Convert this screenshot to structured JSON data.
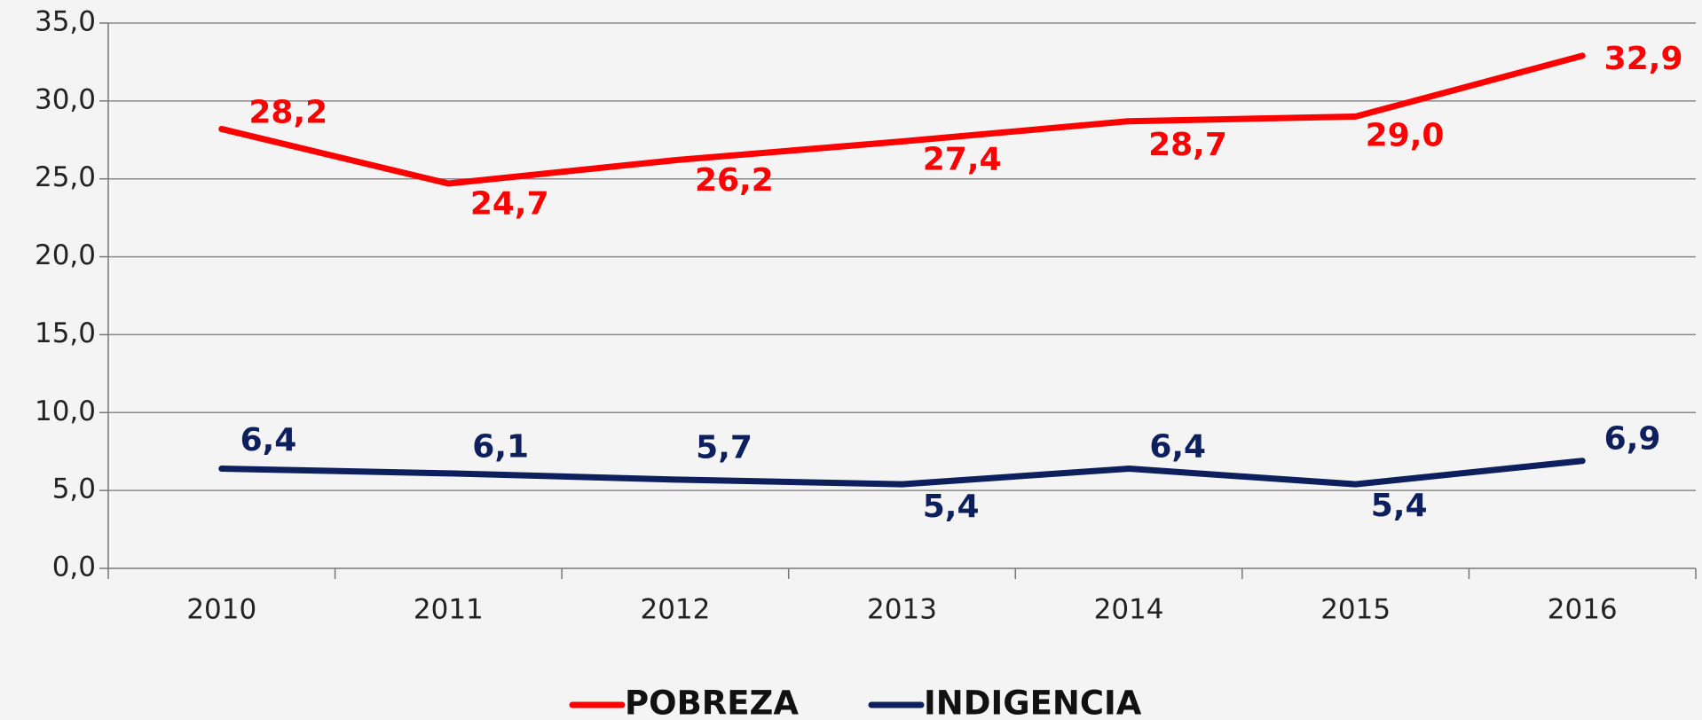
{
  "chart_data": {
    "type": "line",
    "categories": [
      "2010",
      "2011",
      "2012",
      "2013",
      "2014",
      "2015",
      "2016"
    ],
    "series": [
      {
        "name": "POBREZA",
        "color": "#ff0000",
        "values": [
          28.2,
          24.7,
          26.2,
          27.4,
          28.7,
          29.0,
          32.9
        ],
        "value_labels": [
          "28,2",
          "24,7",
          "26,2",
          "27,4",
          "28,7",
          "29,0",
          "32,9"
        ]
      },
      {
        "name": "INDIGENCIA",
        "color": "#0d1f5c",
        "values": [
          6.4,
          6.1,
          5.7,
          5.4,
          6.4,
          5.4,
          6.9
        ],
        "value_labels": [
          "6,4",
          "6,1",
          "5,7",
          "5,4",
          "6,4",
          "5,4",
          "6,9"
        ]
      }
    ],
    "ylim": [
      0,
      35
    ],
    "yticks": [
      {
        "value": 0,
        "label": "0,0"
      },
      {
        "value": 5,
        "label": "5,0"
      },
      {
        "value": 10,
        "label": "10,0"
      },
      {
        "value": 15,
        "label": "15,0"
      },
      {
        "value": 20,
        "label": "20,0"
      },
      {
        "value": 25,
        "label": "25,0"
      },
      {
        "value": 30,
        "label": "30,0"
      },
      {
        "value": 35,
        "label": "35,0"
      }
    ],
    "grid": true,
    "legend": "bottom"
  }
}
